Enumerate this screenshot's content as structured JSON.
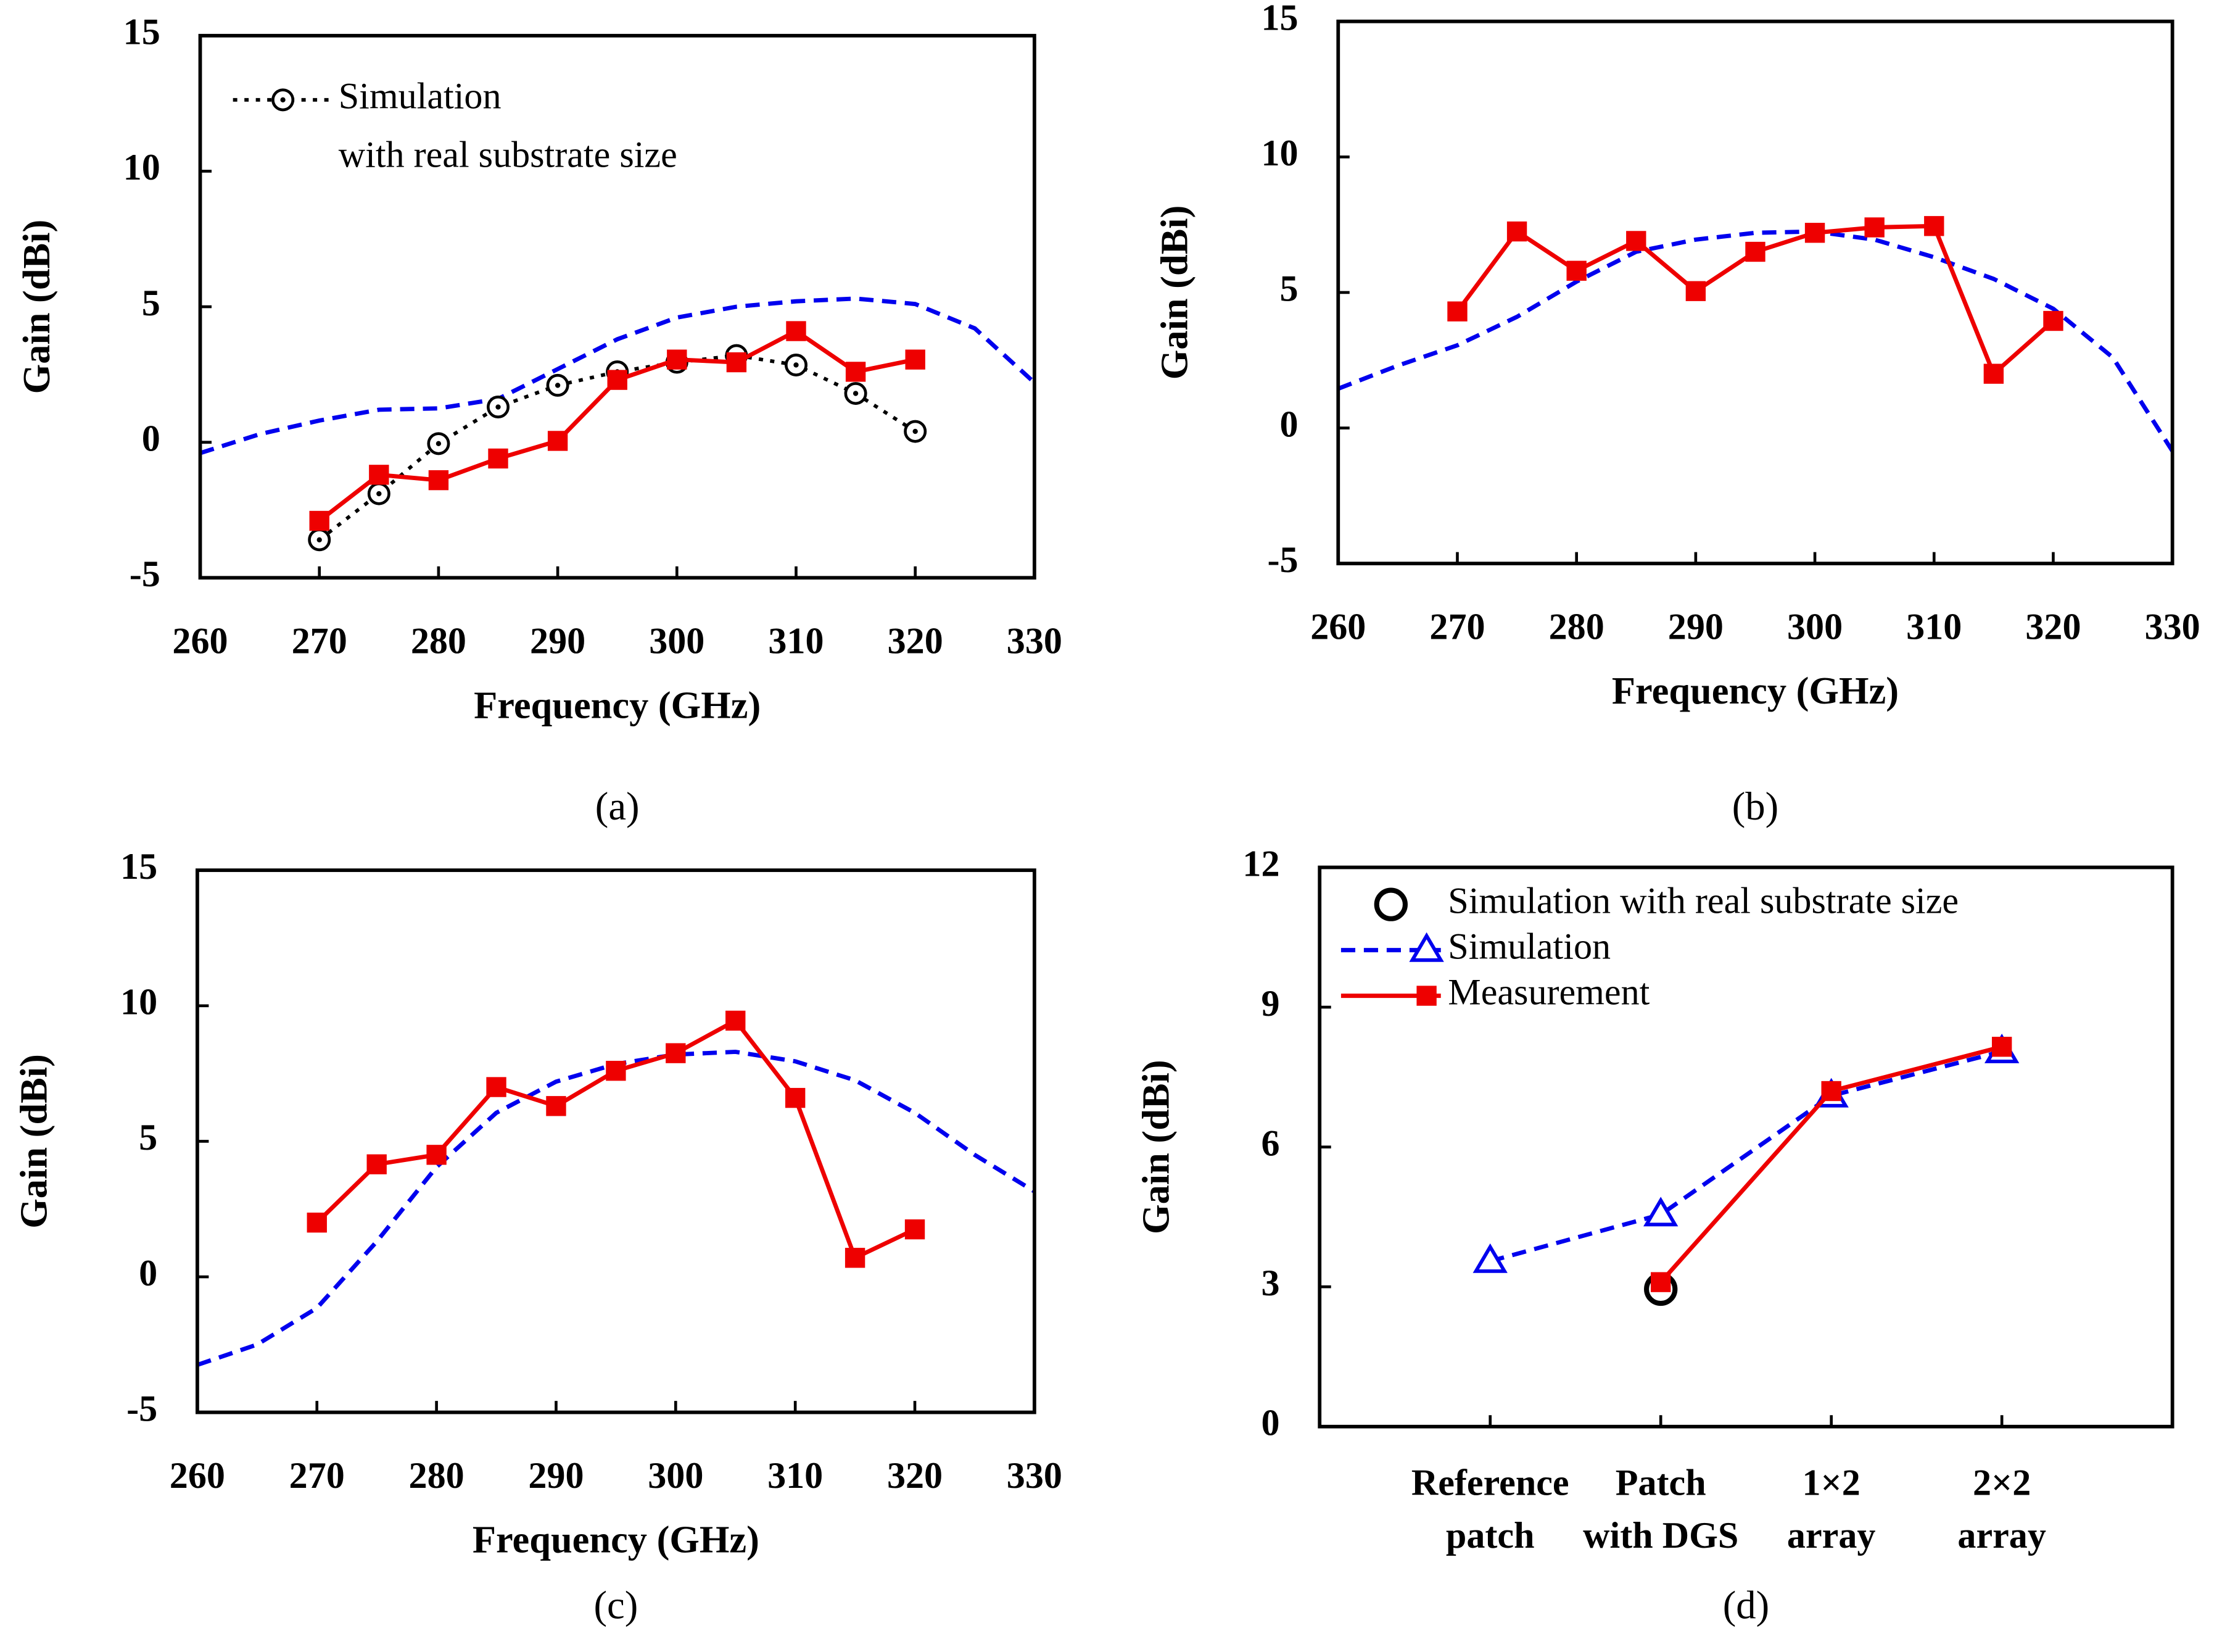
{
  "chart_data": [
    {
      "type": "line",
      "caption": "(a)",
      "x_label": "Frequency (GHz)",
      "y_label": "Gain (dBi)",
      "xlim": [
        260,
        330
      ],
      "xticks": [
        260,
        270,
        280,
        290,
        300,
        310,
        320,
        330
      ],
      "ylim": [
        -5,
        15
      ],
      "yticks": [
        -5,
        0,
        5,
        10,
        15
      ],
      "series": [
        {
          "color": "#0000ee",
          "style": "dashed",
          "marker": "none",
          "x": [
            260,
            265,
            270,
            275,
            280,
            285,
            290,
            295,
            300,
            305,
            310,
            315,
            320,
            325,
            330
          ],
          "values": [
            -0.4,
            0.3,
            0.8,
            1.2,
            1.25,
            1.6,
            2.7,
            3.8,
            4.6,
            5.0,
            5.2,
            5.3,
            5.1,
            4.2,
            2.2
          ]
        },
        {
          "name": [
            "Simulation",
            "with real substrate size"
          ],
          "color": "#000000",
          "style": "dotted",
          "marker": "circle-dot",
          "x": [
            270,
            275,
            280,
            285,
            290,
            295,
            300,
            305,
            310,
            315,
            320
          ],
          "values": [
            -3.6,
            -1.9,
            -0.05,
            1.3,
            2.1,
            2.6,
            2.95,
            3.2,
            2.85,
            1.8,
            0.4
          ]
        },
        {
          "color": "#ee0000",
          "style": "solid",
          "marker": "square",
          "x": [
            270,
            275,
            280,
            285,
            290,
            295,
            300,
            305,
            310,
            315,
            320
          ],
          "values": [
            -2.9,
            -1.2,
            -1.4,
            -0.6,
            0.05,
            2.3,
            3.05,
            2.95,
            4.1,
            2.6,
            3.05
          ]
        }
      ]
    },
    {
      "type": "line",
      "caption": "(b)",
      "x_label": "Frequency (GHz)",
      "y_label": "Gain (dBi)",
      "xlim": [
        260,
        330
      ],
      "xticks": [
        260,
        270,
        280,
        290,
        300,
        310,
        320,
        330
      ],
      "ylim": [
        -5,
        15
      ],
      "yticks": [
        -5,
        0,
        5,
        10,
        15
      ],
      "series": [
        {
          "color": "#0000ee",
          "style": "dashed",
          "marker": "none",
          "x": [
            260,
            265,
            270,
            275,
            280,
            285,
            290,
            295,
            300,
            305,
            310,
            315,
            320,
            325,
            330
          ],
          "values": [
            1.45,
            2.3,
            3.05,
            4.1,
            5.4,
            6.5,
            6.95,
            7.2,
            7.25,
            6.95,
            6.3,
            5.5,
            4.4,
            2.6,
            -0.85
          ]
        },
        {
          "color": "#ee0000",
          "style": "solid",
          "marker": "square",
          "x": [
            270,
            275,
            280,
            285,
            290,
            295,
            300,
            305,
            310,
            315,
            320
          ],
          "values": [
            4.3,
            7.25,
            5.8,
            6.9,
            5.05,
            6.5,
            7.2,
            7.4,
            7.45,
            2.0,
            3.95
          ]
        }
      ]
    },
    {
      "type": "line",
      "caption": "(c)",
      "x_label": "Frequency (GHz)",
      "y_label": "Gain (dBi)",
      "xlim": [
        260,
        330
      ],
      "xticks": [
        260,
        270,
        280,
        290,
        300,
        310,
        320,
        330
      ],
      "ylim": [
        -5,
        15
      ],
      "yticks": [
        -5,
        0,
        5,
        10,
        15
      ],
      "series": [
        {
          "color": "#0000ee",
          "style": "dashed",
          "marker": "none",
          "x": [
            260,
            265,
            270,
            275,
            280,
            285,
            290,
            295,
            300,
            305,
            310,
            315,
            320,
            325,
            330
          ],
          "values": [
            -3.25,
            -2.5,
            -1.15,
            1.3,
            4.05,
            6.05,
            7.2,
            7.85,
            8.2,
            8.3,
            7.95,
            7.25,
            6.05,
            4.5,
            3.15
          ]
        },
        {
          "color": "#ee0000",
          "style": "solid",
          "marker": "square",
          "x": [
            270,
            275,
            280,
            285,
            290,
            295,
            300,
            305,
            310,
            315,
            320
          ],
          "values": [
            2.0,
            4.15,
            4.5,
            7.0,
            6.3,
            7.6,
            8.25,
            9.45,
            6.6,
            0.7,
            1.75
          ]
        }
      ]
    },
    {
      "type": "line",
      "caption": "(d)",
      "y_label": "Gain (dBi)",
      "categories": [
        [
          "Reference",
          "patch"
        ],
        [
          "Patch",
          "with DGS"
        ],
        [
          "1×2",
          "array"
        ],
        [
          "2×2",
          "array"
        ]
      ],
      "ylim": [
        0,
        12
      ],
      "yticks": [
        0,
        3,
        6,
        9,
        12
      ],
      "series": [
        {
          "name": "Simulation with real substrate size",
          "color": "#000000",
          "style": "none",
          "marker": "circle",
          "values": [
            null,
            2.95,
            null,
            null
          ]
        },
        {
          "name": "Simulation",
          "color": "#0000ee",
          "style": "dashed",
          "marker": "triangle",
          "values": [
            3.55,
            4.55,
            7.1,
            8.05
          ]
        },
        {
          "name": "Measurement",
          "color": "#ee0000",
          "style": "solid",
          "marker": "square",
          "values": [
            null,
            3.1,
            7.2,
            8.15
          ]
        }
      ]
    }
  ]
}
